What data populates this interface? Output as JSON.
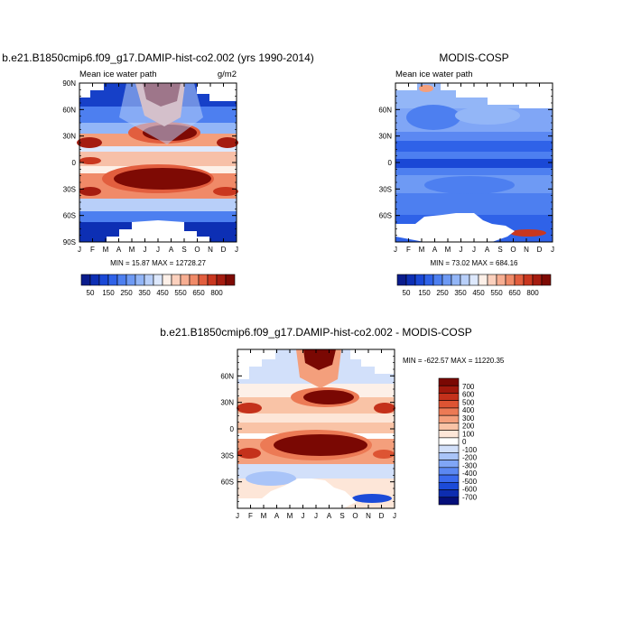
{
  "figure_title": "",
  "months": [
    "J",
    "F",
    "M",
    "A",
    "M",
    "J",
    "J",
    "A",
    "S",
    "O",
    "N",
    "D",
    "J"
  ],
  "lat_labels_full": [
    "90N",
    "60N",
    "30N",
    "0",
    "30S",
    "60S",
    "90S"
  ],
  "lat_labels_short": [
    "60N",
    "30N",
    "0",
    "30S",
    "60S"
  ],
  "palette": {
    "abs": [
      "#0a1c8c",
      "#0d2fb4",
      "#1a48d6",
      "#2f62e8",
      "#4d7ff0",
      "#6e9af4",
      "#93b6f7",
      "#b8cff9",
      "#dde8fc",
      "#fdf0e8",
      "#fbd0bd",
      "#f7ae92",
      "#f08a68",
      "#e25e3e",
      "#c9371f",
      "#a51c10",
      "#7e0a04"
    ],
    "diff": [
      "#050f7a",
      "#0d2db0",
      "#1c4bd8",
      "#3a6aee",
      "#5b88f2",
      "#80a6f6",
      "#a9c4f8",
      "#d2e0fa",
      "#ffffff",
      "#fde6d8",
      "#f9c3a6",
      "#f49f7c",
      "#ec7a55",
      "#dd5433",
      "#c4311b",
      "#a1180c",
      "#7a0803"
    ]
  },
  "chart_data": [
    {
      "type": "heatmap",
      "title": "b.e21.B1850cmip6.f09_g17.DAMIP-hist-co2.002 (yrs 1990-2014)",
      "subtitle_left": "Mean ice water path",
      "subtitle_right": "g/m2",
      "minmax": "MIN =  15.87 MAX = 12728.27",
      "x_ticks": [
        "J",
        "F",
        "M",
        "A",
        "M",
        "J",
        "J",
        "A",
        "S",
        "O",
        "N",
        "D",
        "J"
      ],
      "y_ticks": [
        "90N",
        "60N",
        "30N",
        "0",
        "30S",
        "60S",
        "90S"
      ],
      "colorbar_labels": [
        "50",
        "150",
        "250",
        "350",
        "450",
        "550",
        "650",
        "800"
      ],
      "levels": [
        50,
        100,
        150,
        200,
        250,
        300,
        350,
        400,
        450,
        500,
        550,
        600,
        650,
        700,
        750,
        800
      ]
    },
    {
      "type": "heatmap",
      "title": "MODIS-COSP",
      "subtitle_left": "Mean ice water path",
      "subtitle_right": "",
      "minmax": "MIN =  73.02 MAX = 684.16",
      "x_ticks": [
        "J",
        "F",
        "M",
        "A",
        "M",
        "J",
        "J",
        "A",
        "S",
        "O",
        "N",
        "D",
        "J"
      ],
      "y_ticks": [
        "60N",
        "30N",
        "0",
        "30S",
        "60S"
      ],
      "colorbar_labels": [
        "50",
        "150",
        "250",
        "350",
        "450",
        "550",
        "650",
        "800"
      ],
      "levels": [
        50,
        100,
        150,
        200,
        250,
        300,
        350,
        400,
        450,
        500,
        550,
        600,
        650,
        700,
        750,
        800
      ]
    },
    {
      "type": "heatmap",
      "title": "b.e21.B1850cmip6.f09_g17.DAMIP-hist-co2.002 - MODIS-COSP",
      "subtitle_left": "",
      "subtitle_right": "",
      "minmax": "MIN = -622.57 MAX = 11220.35",
      "x_ticks": [
        "J",
        "F",
        "M",
        "A",
        "M",
        "J",
        "J",
        "A",
        "S",
        "O",
        "N",
        "D",
        "J"
      ],
      "y_ticks": [
        "60N",
        "30N",
        "0",
        "30S",
        "60S"
      ],
      "colorbar_labels": [
        "700",
        "600",
        "500",
        "400",
        "300",
        "200",
        "100",
        "0",
        "-100",
        "-200",
        "-300",
        "-400",
        "-500",
        "-600",
        "-700"
      ],
      "levels": [
        -700,
        -600,
        -500,
        -400,
        -300,
        -200,
        -100,
        0,
        100,
        200,
        300,
        400,
        500,
        600,
        700
      ]
    }
  ]
}
